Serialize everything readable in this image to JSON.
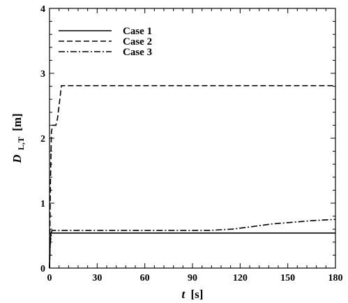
{
  "chart_data": {
    "type": "line",
    "xlabel": {
      "var": "t",
      "unit": "[s]"
    },
    "ylabel": {
      "var": "D",
      "sub": "L,T",
      "unit": "[m]"
    },
    "xlim": [
      0,
      180
    ],
    "ylim": [
      0,
      4
    ],
    "xticks": [
      "0",
      "30",
      "60",
      "90",
      "120",
      "150",
      "180"
    ],
    "yticks": [
      "0",
      "1",
      "2",
      "3",
      "4"
    ],
    "grid": false,
    "legend_position": "top-left",
    "series": [
      {
        "name": "Case 1",
        "dash": "solid",
        "color": "#000000",
        "x": [
          0,
          0.3,
          0.8,
          180
        ],
        "y": [
          0,
          0.3,
          0.54,
          0.54
        ]
      },
      {
        "name": "Case 2",
        "dash": "dashed",
        "color": "#000000",
        "x": [
          0,
          0.5,
          1.2,
          2,
          3,
          4,
          5,
          6.5,
          7.5,
          180
        ],
        "y": [
          0,
          1.2,
          2.1,
          2.2,
          2.2,
          2.2,
          2.3,
          2.6,
          2.81,
          2.81
        ]
      },
      {
        "name": "Case 3",
        "dash": "dashdot",
        "color": "#000000",
        "x": [
          0,
          0.5,
          1.5,
          60,
          100,
          115,
          125,
          140,
          150,
          165,
          172,
          180
        ],
        "y": [
          0,
          0.4,
          0.58,
          0.58,
          0.58,
          0.6,
          0.63,
          0.68,
          0.7,
          0.73,
          0.74,
          0.75
        ]
      }
    ]
  }
}
